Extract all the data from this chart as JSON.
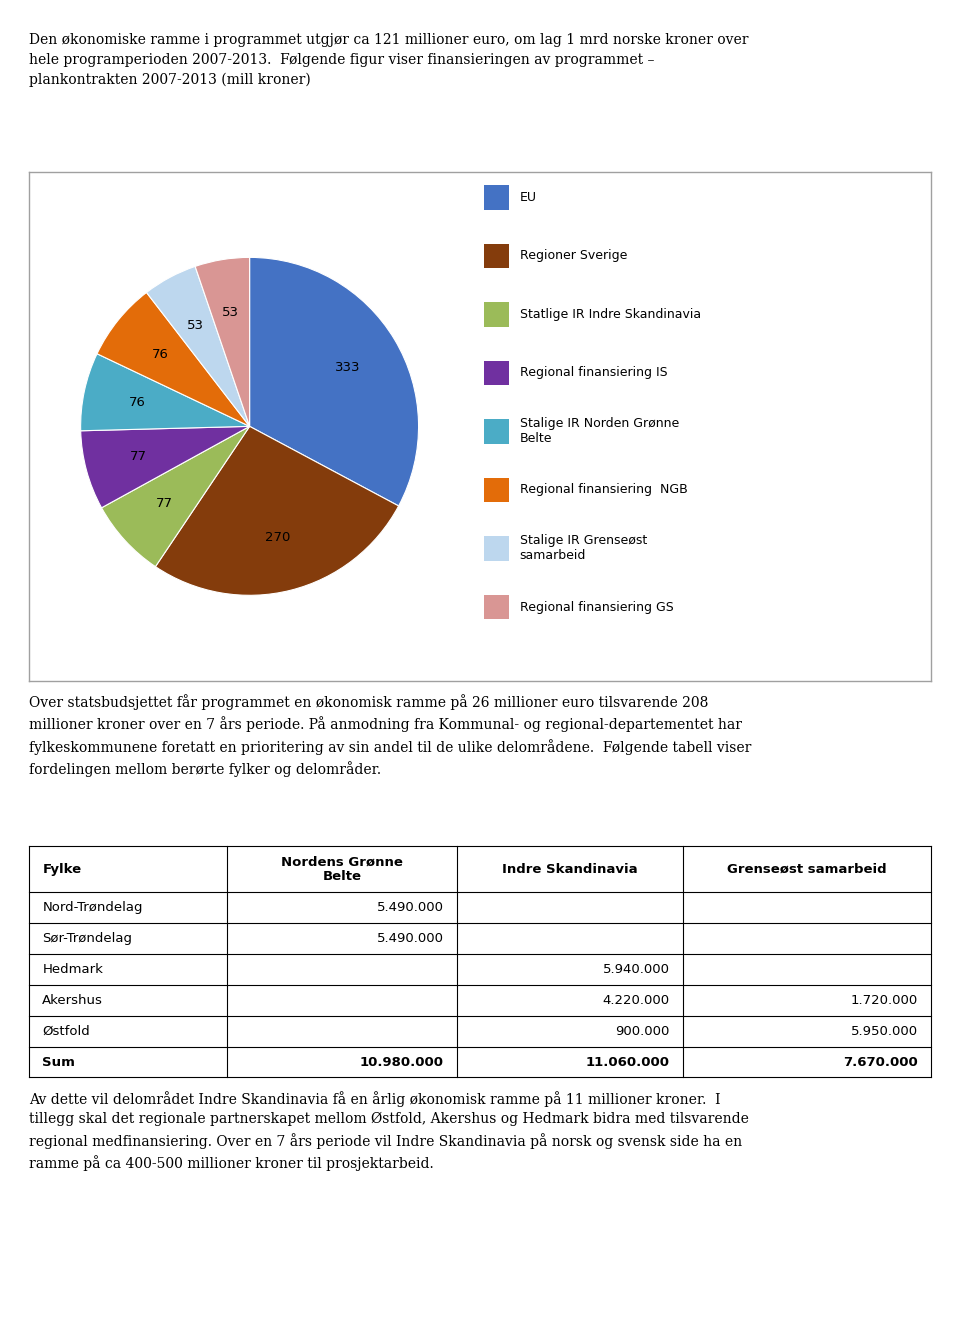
{
  "header_line1": "Den økonomiske ramme i programmet utgjør ca 121 millioner euro, om lag 1 mrd norske kroner over",
  "header_line2": "hele programperioden 2007-2013.  Følgende figur viser finansieringen av programmet –",
  "header_line3": "plankontrakten 2007-2013 (mill kroner)",
  "pie_values": [
    333,
    270,
    77,
    77,
    76,
    76,
    53,
    53
  ],
  "pie_labels": [
    "333",
    "270",
    "77",
    "77",
    "76",
    "76",
    "53",
    "53"
  ],
  "pie_colors": [
    "#4472C4",
    "#843C0C",
    "#9BBB59",
    "#7030A0",
    "#4BACC6",
    "#E36C09",
    "#BDD7EE",
    "#D99694"
  ],
  "legend_labels": [
    "EU",
    "Regioner Sverige",
    "Statlige IR Indre Skandinavia",
    "Regional finansiering IS",
    "Stalige IR Norden Grønne\nBelte",
    "Regional finansiering  NGB",
    "Stalige IR Grenseøst\nsamarbeid",
    "Regional finansiering GS"
  ],
  "mid_text_lines": [
    "Over statsbudsjettet får programmet en økonomisk ramme på 26 millioner euro tilsvarende 208",
    "millioner kroner over en 7 års periode. På anmodning fra Kommunal- og regional-departementet har",
    "fylkeskommunene foretatt en prioritering av sin andel til de ulike delområdene.  Følgende tabell viser",
    "fordelingen mellom berørte fylker og delområder."
  ],
  "table_col_headers": [
    "Fylke",
    "Nordens Grønne\nBelte",
    "Indre Skandinavia",
    "Grenseøst samarbeid"
  ],
  "table_rows": [
    [
      "Nord-Trøndelag",
      "5.490.000",
      "",
      ""
    ],
    [
      "Sør-Trøndelag",
      "5.490.000",
      "",
      ""
    ],
    [
      "Hedmark",
      "",
      "5.940.000",
      ""
    ],
    [
      "Akershus",
      "",
      "4.220.000",
      "1.720.000"
    ],
    [
      "Østfold",
      "",
      "900.000",
      "5.950.000"
    ],
    [
      "Sum",
      "10.980.000",
      "11.060.000",
      "7.670.000"
    ]
  ],
  "footer_text_lines": [
    "Av dette vil delområdet Indre Skandinavia få en årlig økonomisk ramme på 11 millioner kroner.  I",
    "tillegg skal det regionale partnerskapet mellom Østfold, Akershus og Hedmark bidra med tilsvarende",
    "regional medfinansiering. Over en 7 års periode vil Indre Skandinavia på norsk og svensk side ha en",
    "ramme på ca 400-500 millioner kroner til prosjektarbeid."
  ],
  "bg_color": "#FFFFFF",
  "box_edge_color": "#A0A0A0",
  "text_color": "#000000"
}
